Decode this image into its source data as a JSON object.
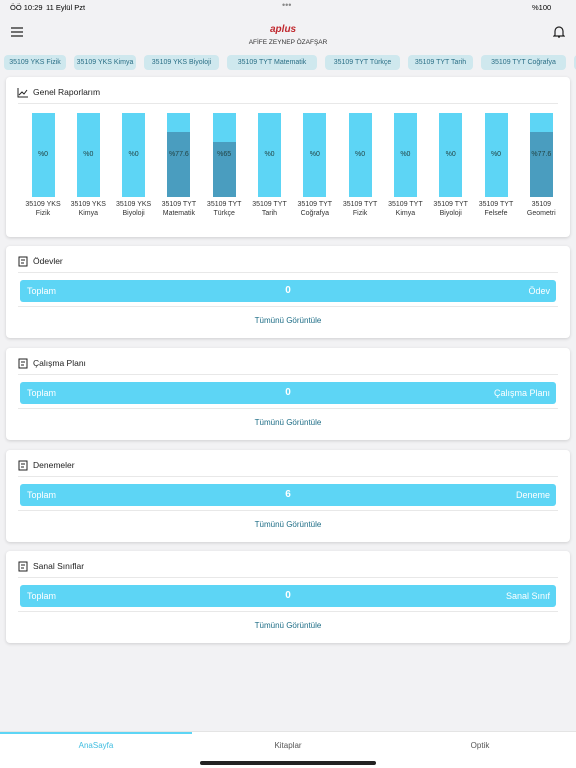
{
  "status_bar": {
    "time": "ÖÖ 10:29",
    "date": "11 Eylül Pzt",
    "battery": "%100"
  },
  "header": {
    "logo": "aplus",
    "user": "AFİFE ZEYNEP ÖZAFŞAR"
  },
  "tabs": [
    "35109 YKS Fizik",
    "35109 YKS Kimya",
    "35109 YKS Biyoloji",
    "35109 TYT Matematik",
    "35109 TYT Türkçe",
    "35109 TYT Tarih",
    "35109 TYT Coğrafya"
  ],
  "report": {
    "type": "bar",
    "title": "Genel Raporlarım",
    "categories": [
      "35109 YKS Fizik",
      "35109 YKS Kimya",
      "35109 YKS Biyoloji",
      "35109 TYT Matematik",
      "35109 TYT Türkçe",
      "35109 TYT Tarih",
      "35109 TYT Coğrafya",
      "35109 TYT Fizik",
      "35109 TYT Kimya",
      "35109 TYT Biyoloji",
      "35109 TYT Felsefe",
      "35109 Geometri"
    ],
    "values": [
      0,
      0,
      0,
      77.6,
      65,
      0,
      0,
      0,
      0,
      0,
      0,
      77.6
    ],
    "value_labels": [
      "%0",
      "%0",
      "%0",
      "%77.6",
      "%65",
      "%0",
      "%0",
      "%0",
      "%0",
      "%0",
      "%0",
      "%77.6"
    ],
    "ylim": [
      0,
      100
    ],
    "track_color": "#5dd5f5",
    "color": "#4a9dbf"
  },
  "cards": [
    {
      "title": "Ödevler",
      "left": "Toplam",
      "count": 0,
      "right": "Ödev",
      "link": "Tümünü Görüntüle"
    },
    {
      "title": "Çalışma Planı",
      "left": "Toplam",
      "count": 0,
      "right": "Çalışma Planı",
      "link": "Tümünü Görüntüle"
    },
    {
      "title": "Denemeler",
      "left": "Toplam",
      "count": 6,
      "right": "Deneme",
      "link": "Tümünü Görüntüle"
    },
    {
      "title": "Sanal Sınıflar",
      "left": "Toplam",
      "count": 0,
      "right": "Sanal Sınıf",
      "link": "Tümünü Görüntüle"
    }
  ],
  "nav": [
    "AnaSayfa",
    "Kitaplar",
    "Optik"
  ]
}
